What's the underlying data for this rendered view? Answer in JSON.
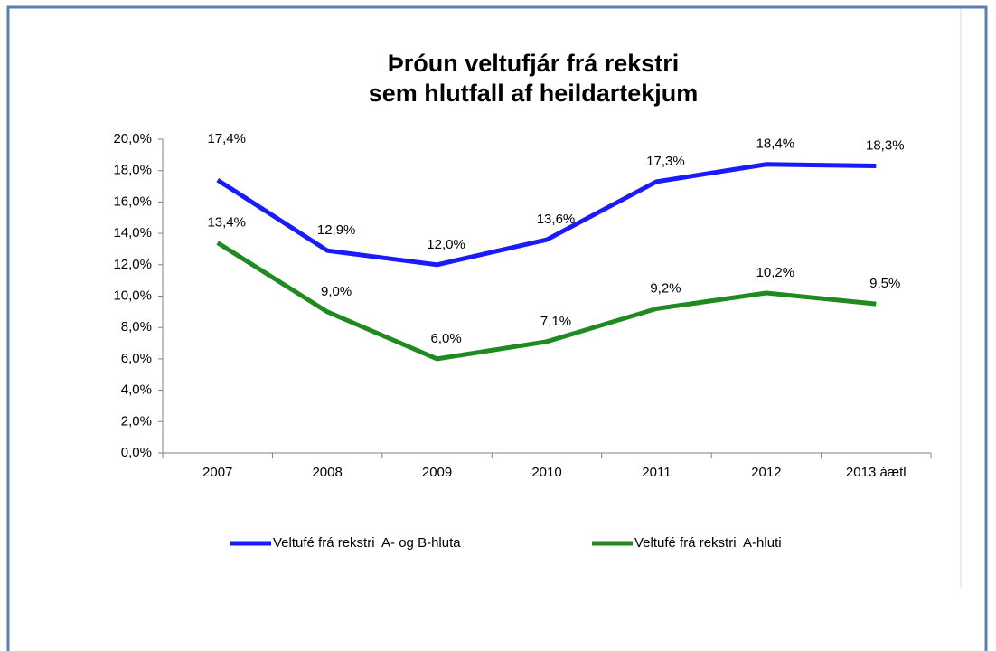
{
  "chart_data": {
    "type": "line",
    "title": [
      "Þróun veltufjár frá rekstri",
      "sem hlutfall af heildartekjum"
    ],
    "categories": [
      "2007",
      "2008",
      "2009",
      "2010",
      "2011",
      "2012",
      "2013 áætl"
    ],
    "series": [
      {
        "name": "Veltufé frá rekstri  A- og B-hluta",
        "color": "#1a1aff",
        "values": [
          17.4,
          12.9,
          12.0,
          13.6,
          17.3,
          18.4,
          18.3
        ],
        "value_labels": [
          "17,4%",
          "12,9%",
          "12,0%",
          "13,6%",
          "17,3%",
          "18,4%",
          "18,3%"
        ]
      },
      {
        "name": "Veltufé frá rekstri  A-hluti",
        "color": "#1f8a1f",
        "values": [
          13.4,
          9.0,
          6.0,
          7.1,
          9.2,
          10.2,
          9.5
        ],
        "value_labels": [
          "13,4%",
          "9,0%",
          "6,0%",
          "7,1%",
          "9,2%",
          "10,2%",
          "9,5%"
        ]
      }
    ],
    "ylim": [
      0,
      20
    ],
    "yticks": [
      {
        "value": 0,
        "label": "0,0%"
      },
      {
        "value": 2,
        "label": "2,0%"
      },
      {
        "value": 4,
        "label": "4,0%"
      },
      {
        "value": 6,
        "label": "6,0%"
      },
      {
        "value": 8,
        "label": "8,0%"
      },
      {
        "value": 10,
        "label": "10,0%"
      },
      {
        "value": 12,
        "label": "12,0%"
      },
      {
        "value": 14,
        "label": "14,0%"
      },
      {
        "value": 16,
        "label": "16,0%"
      },
      {
        "value": 18,
        "label": "18,0%"
      },
      {
        "value": 20,
        "label": "20,0%"
      }
    ],
    "legend": "bottom"
  }
}
